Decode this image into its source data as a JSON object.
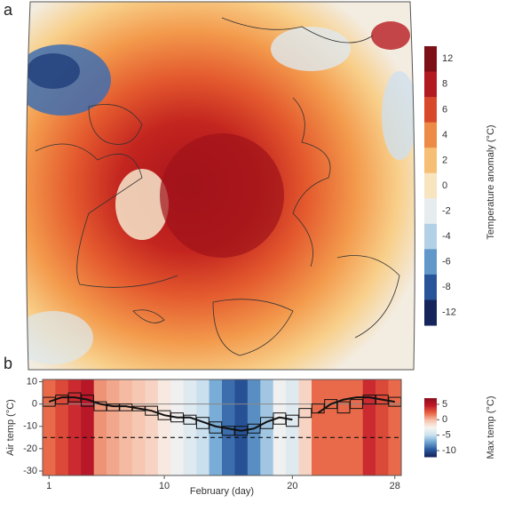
{
  "chart_data": [
    {
      "type": "map",
      "panel_label": "a",
      "colorbar_label": "Temperature anomaly (°C)",
      "colorbar_ticks": [
        12,
        8,
        6,
        4,
        2,
        0,
        -2,
        -4,
        -6,
        -8,
        -12
      ],
      "colormap": [
        "#16245c",
        "#2a5aa0",
        "#6fa6d3",
        "#cfe3f0",
        "#f7f4ef",
        "#f8d38e",
        "#f3a04f",
        "#e0552e",
        "#b81b22",
        "#7d0f16"
      ]
    },
    {
      "type": "line",
      "panel_label": "b",
      "xlabel": "February (day)",
      "ylabel": "Air temp (°C)",
      "colorbar_label": "Max temp (°C)",
      "colorbar_ticks": [
        5,
        0,
        -5,
        -10
      ],
      "clim": [
        -12,
        7
      ],
      "colormap": [
        "#16245c",
        "#2a5aa0",
        "#6fa6d3",
        "#cfe3f0",
        "#f7f4ef",
        "#f6c0a8",
        "#e8603f",
        "#c0182a",
        "#8c0f1e"
      ],
      "x": [
        1,
        2,
        3,
        4,
        5,
        6,
        7,
        8,
        9,
        10,
        11,
        12,
        13,
        14,
        15,
        16,
        17,
        18,
        19,
        20,
        21,
        22,
        23,
        24,
        25,
        26,
        27,
        28
      ],
      "max_temp": [
        2,
        3,
        4,
        5,
        1,
        0.5,
        0,
        -0.5,
        -1,
        -2,
        -3,
        -4,
        -5,
        -7,
        -9,
        -10,
        -8,
        -6,
        -3,
        -4,
        -1,
        2,
        2,
        2,
        2,
        4,
        3,
        2
      ],
      "box_low": [
        -1,
        0,
        1,
        -1,
        -3,
        -3,
        -3,
        -3,
        -5,
        -7,
        -8,
        -9,
        -11,
        -13,
        -14,
        -14,
        -13,
        -11,
        -9,
        -10,
        -6,
        -4,
        -2,
        -4,
        -2,
        0,
        0,
        -1
      ],
      "box_high": [
        3,
        4,
        5,
        4,
        1,
        0,
        0,
        -1,
        -1,
        -3,
        -4,
        -5,
        -6,
        -8,
        -10,
        -10,
        -9,
        -6,
        -4,
        -5,
        -2,
        0,
        2,
        1,
        2,
        4,
        4,
        3
      ],
      "values": [
        1,
        3,
        3,
        2,
        0,
        -1,
        -1,
        -2,
        -3,
        -5,
        -6,
        -6,
        -8,
        -10,
        -11,
        -12,
        -11,
        -8,
        -6,
        -7,
        null,
        -4,
        0,
        2,
        3,
        3,
        2,
        1
      ],
      "reference_lines": [
        {
          "value": 0,
          "style": "solid"
        },
        {
          "value": -15,
          "style": "dashed"
        }
      ],
      "xlim": [
        0.5,
        28.5
      ],
      "ylim": [
        -32,
        11
      ],
      "xticks": [
        1,
        10,
        20,
        28
      ],
      "yticks": [
        10,
        0,
        -10,
        -20,
        -30
      ]
    }
  ]
}
